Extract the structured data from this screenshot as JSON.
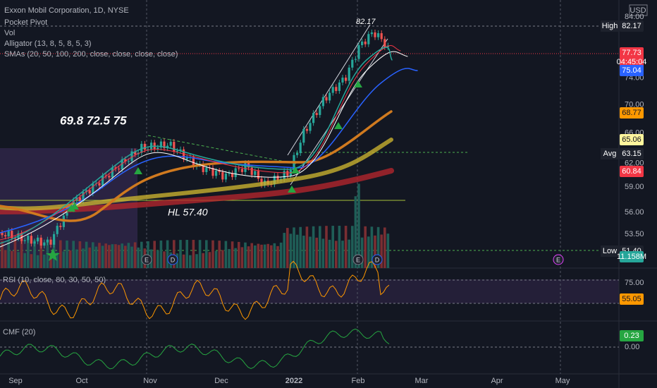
{
  "header": {
    "title": "Exxon Mobil Corporation, 1D, NYSE",
    "currency": "USD"
  },
  "indicators": [
    "Pocket Pivot",
    "Vol",
    "Alligator (13, 8, 5, 8, 5, 3)",
    "SMAs (20, 50, 100, 200, close, close, close, close)"
  ],
  "price_axis": [
    "84.00",
    "74.00",
    "70.00",
    "66.00",
    "62.00",
    "59.00",
    "56.00",
    "53.50"
  ],
  "badges": {
    "high": {
      "label": "High",
      "value": "82.17"
    },
    "last": "77.73",
    "countdown": "04:45:04",
    "sma20": "75.04",
    "sma50": "68.77",
    "sma100": "65.06",
    "avg": {
      "label": "Avg",
      "value": "63.15"
    },
    "sma200": "60.84",
    "low": {
      "label": "Low",
      "value": "51.40"
    },
    "volume": "11.158M"
  },
  "annotations": {
    "targets": "69.8 72.5 75",
    "hl": "HL 57.40",
    "peak": "82.17"
  },
  "events": [
    "E",
    "D",
    "E",
    "D",
    "E"
  ],
  "rsi": {
    "label": "RSI (10, close, 80, 30, 50, 50)",
    "axis": "75.00",
    "value": "55.05"
  },
  "cmf": {
    "label": "CMF (20)",
    "value": "0.23",
    "axis": "0.00"
  },
  "time_axis": [
    "Sep",
    "Oct",
    "Nov",
    "Dec",
    "2022",
    "Feb",
    "Mar",
    "Apr",
    "May"
  ]
}
